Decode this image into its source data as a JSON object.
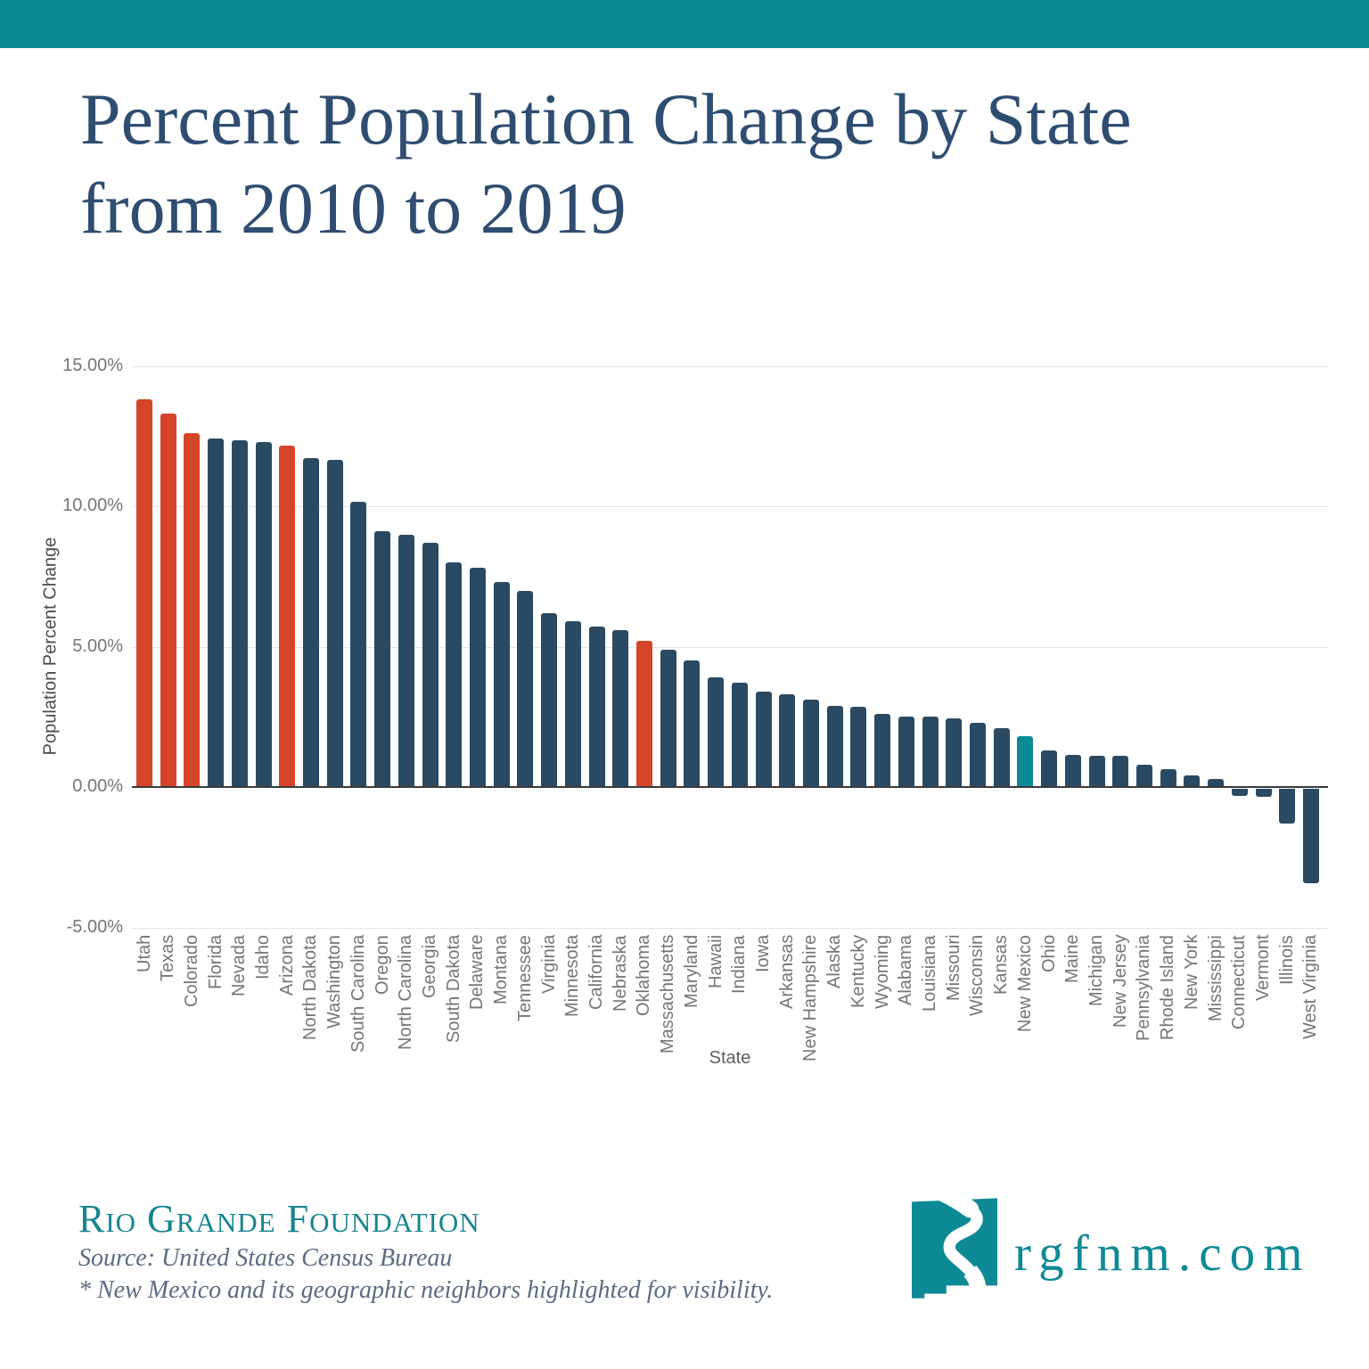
{
  "header": {
    "band_color": "#0E8A96"
  },
  "title": {
    "line1": "Percent Population Change by State",
    "line2": "from 2010 to 2019"
  },
  "chart_data": {
    "type": "bar",
    "title": "Percent Population Change by State from 2010 to 2019",
    "xlabel": "State",
    "ylabel": "Population Percent Change",
    "ylim": [
      -5,
      15
    ],
    "grid": true,
    "legend": "none",
    "yticks": [
      {
        "value": 15,
        "label": "15.00%"
      },
      {
        "value": 10,
        "label": "10.00%"
      },
      {
        "value": 5,
        "label": "5.00%"
      },
      {
        "value": 0,
        "label": "0.00%"
      },
      {
        "value": -5,
        "label": "-5.00%"
      }
    ],
    "categories": [
      "Utah",
      "Texas",
      "Colorado",
      "Florida",
      "Nevada",
      "Idaho",
      "Arizona",
      "North Dakota",
      "Washington",
      "South Carolina",
      "Oregon",
      "North Carolina",
      "Georgia",
      "South Dakota",
      "Delaware",
      "Montana",
      "Tennessee",
      "Virginia",
      "Minnesota",
      "California",
      "Nebraska",
      "Oklahoma",
      "Massachusetts",
      "Maryland",
      "Hawaii",
      "Indiana",
      "Iowa",
      "Arkansas",
      "New Hampshire",
      "Alaska",
      "Kentucky",
      "Wyoming",
      "Alabama",
      "Louisiana",
      "Missouri",
      "Wisconsin",
      "Kansas",
      "New Mexico",
      "Ohio",
      "Maine",
      "Michigan",
      "New Jersey",
      "Pennsylvania",
      "Rhode Island",
      "New York",
      "Mississippi",
      "Connecticut",
      "Vermont",
      "Illinois",
      "West Virginia"
    ],
    "values": [
      13.8,
      13.3,
      12.6,
      12.4,
      12.35,
      12.3,
      12.15,
      11.7,
      11.65,
      10.15,
      9.1,
      9.0,
      8.7,
      8.0,
      7.8,
      7.3,
      7.0,
      6.2,
      5.9,
      5.7,
      5.6,
      5.2,
      4.9,
      4.5,
      3.9,
      3.7,
      3.4,
      3.3,
      3.1,
      2.9,
      2.85,
      2.6,
      2.5,
      2.5,
      2.45,
      2.3,
      2.1,
      1.8,
      1.3,
      1.15,
      1.1,
      1.1,
      0.8,
      0.65,
      0.4,
      0.3,
      -0.25,
      -0.3,
      -1.25,
      -3.35
    ],
    "highlight_red": [
      "Utah",
      "Texas",
      "Colorado",
      "Arizona",
      "Oklahoma"
    ],
    "highlight_teal": [
      "New Mexico"
    ],
    "colors": {
      "bar_default": "#2A4A63",
      "bar_neighbor": "#D5452A",
      "bar_new_mexico": "#0E8A96",
      "gridline": "#E3E3E3",
      "axis_line": "#3A3A3A",
      "tick_text": "#757575"
    }
  },
  "footer": {
    "brand": "Rio Grande Foundation",
    "source": "Source: United States Census Bureau",
    "footnote": "* New Mexico and its geographic neighbors highlighted for visibility.",
    "site": "rgfnm.com",
    "brand_color": "#17858F",
    "logo_color": "#0E8A96"
  }
}
